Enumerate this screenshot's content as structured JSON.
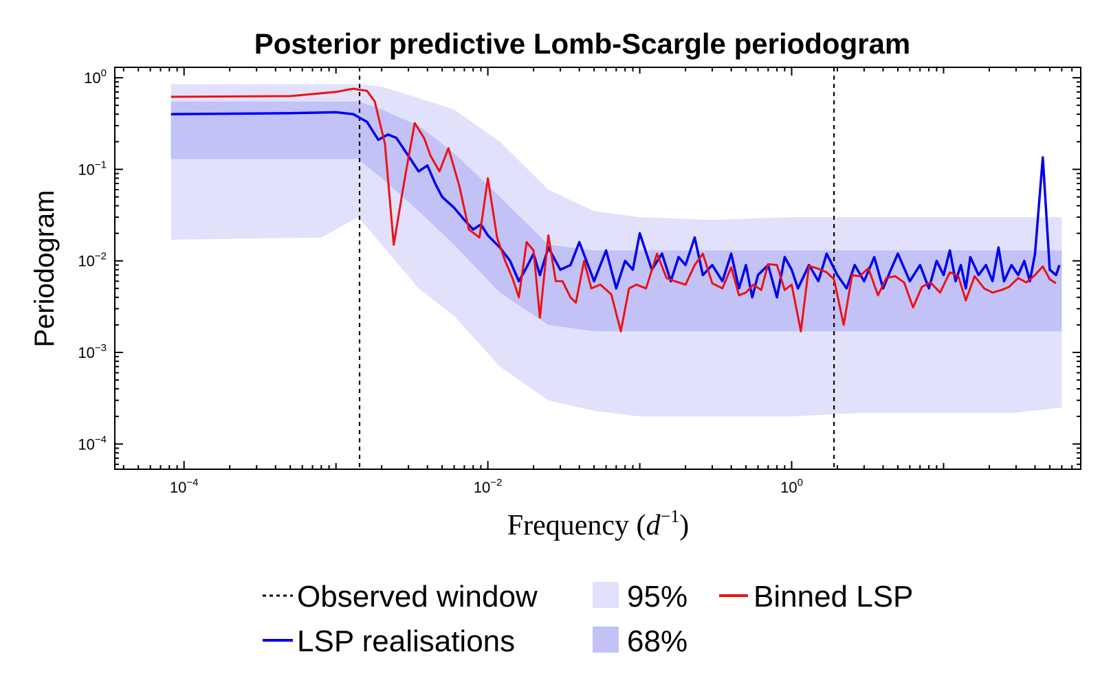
{
  "chart_data": {
    "type": "line",
    "title": "Posterior predictive Lomb-Scargle periodogram",
    "xlabel": "Frequency (d^-1)",
    "xlabel_parts": {
      "main": "Frequency (",
      "var": "d",
      "exp": "−1",
      "close": ")"
    },
    "ylabel": "Periodogram",
    "x_scale": "log",
    "y_scale": "log",
    "xlim": [
      3.5e-05,
      80
    ],
    "ylim": [
      5.3e-05,
      1.3
    ],
    "x_ticks": [
      {
        "base": "10",
        "exp": "−4",
        "value": 0.0001
      },
      {
        "base": "10",
        "exp": "−2",
        "value": 0.01
      },
      {
        "base": "10",
        "exp": "0",
        "value": 1
      }
    ],
    "y_ticks": [
      {
        "base": "10",
        "exp": "0",
        "value": 1
      },
      {
        "base": "10",
        "exp": "−1",
        "value": 0.1
      },
      {
        "base": "10",
        "exp": "−2",
        "value": 0.01
      },
      {
        "base": "10",
        "exp": "−3",
        "value": 0.001
      },
      {
        "base": "10",
        "exp": "−4",
        "value": 0.0001
      }
    ],
    "observed_window": [
      0.00143,
      1.9
    ],
    "band_95": {
      "x": [
        8.2e-05,
        0.0008,
        0.0014,
        0.002,
        0.0035,
        0.006,
        0.012,
        0.025,
        0.05,
        0.1,
        0.3,
        1,
        3,
        8,
        30,
        60
      ],
      "upper": [
        0.85,
        0.85,
        0.85,
        0.8,
        0.6,
        0.45,
        0.2,
        0.06,
        0.035,
        0.03,
        0.028,
        0.03,
        0.03,
        0.03,
        0.03,
        0.03
      ],
      "lower": [
        0.017,
        0.018,
        0.03,
        0.015,
        0.005,
        0.0025,
        0.0007,
        0.0003,
        0.00023,
        0.0002,
        0.0002,
        0.0002,
        0.00022,
        0.00022,
        0.00022,
        0.00025
      ]
    },
    "band_68": {
      "x": [
        8.2e-05,
        0.0008,
        0.0014,
        0.002,
        0.0035,
        0.006,
        0.012,
        0.025,
        0.05,
        0.1,
        0.3,
        1,
        3,
        8,
        30,
        60
      ],
      "upper": [
        0.55,
        0.55,
        0.55,
        0.45,
        0.3,
        0.15,
        0.05,
        0.015,
        0.013,
        0.013,
        0.013,
        0.013,
        0.013,
        0.013,
        0.013,
        0.013
      ],
      "lower": [
        0.13,
        0.13,
        0.13,
        0.08,
        0.035,
        0.015,
        0.0045,
        0.002,
        0.0017,
        0.0017,
        0.0017,
        0.0017,
        0.0017,
        0.0017,
        0.0017,
        0.0017
      ]
    },
    "series": [
      {
        "name": "LSP realisations",
        "color": "#0000ee",
        "x": [
          8.2e-05,
          0.0005,
          0.001,
          0.0013,
          0.0016,
          0.0019,
          0.0022,
          0.0025,
          0.003,
          0.0035,
          0.004,
          0.0045,
          0.005,
          0.006,
          0.007,
          0.008,
          0.009,
          0.01,
          0.012,
          0.014,
          0.016,
          0.018,
          0.02,
          0.022,
          0.025,
          0.03,
          0.035,
          0.04,
          0.05,
          0.06,
          0.07,
          0.08,
          0.09,
          0.1,
          0.12,
          0.14,
          0.16,
          0.18,
          0.2,
          0.23,
          0.26,
          0.3,
          0.35,
          0.4,
          0.45,
          0.5,
          0.55,
          0.6,
          0.7,
          0.8,
          0.9,
          1.0,
          1.1,
          1.3,
          1.5,
          1.7,
          2.0,
          2.3,
          2.6,
          3.0,
          3.5,
          4.0,
          4.5,
          5.0,
          6.0,
          7.0,
          8.0,
          9.0,
          10.0,
          11.0,
          12.0,
          13.0,
          14.0,
          15.0,
          17.0,
          19.0,
          21.0,
          23.0,
          25.0,
          28.0,
          31.0,
          34.0,
          37.0,
          40.0,
          45.0,
          50.0,
          55.0,
          58.0
        ],
        "y": [
          0.4,
          0.41,
          0.42,
          0.4,
          0.33,
          0.21,
          0.24,
          0.22,
          0.14,
          0.095,
          0.11,
          0.07,
          0.05,
          0.038,
          0.028,
          0.022,
          0.025,
          0.019,
          0.014,
          0.01,
          0.006,
          0.0085,
          0.012,
          0.007,
          0.014,
          0.008,
          0.009,
          0.016,
          0.006,
          0.013,
          0.005,
          0.01,
          0.008,
          0.02,
          0.008,
          0.012,
          0.006,
          0.011,
          0.009,
          0.018,
          0.007,
          0.009,
          0.006,
          0.012,
          0.005,
          0.009,
          0.004,
          0.007,
          0.009,
          0.004,
          0.011,
          0.008,
          0.005,
          0.009,
          0.006,
          0.012,
          0.007,
          0.005,
          0.009,
          0.006,
          0.011,
          0.005,
          0.008,
          0.012,
          0.006,
          0.009,
          0.005,
          0.01,
          0.007,
          0.013,
          0.006,
          0.009,
          0.005,
          0.011,
          0.007,
          0.009,
          0.006,
          0.014,
          0.006,
          0.009,
          0.007,
          0.01,
          0.006,
          0.012,
          0.135,
          0.008,
          0.007,
          0.009
        ]
      },
      {
        "name": "Binned LSP",
        "color": "#ee1111",
        "x": [
          8.2e-05,
          0.0005,
          0.001,
          0.0013,
          0.0016,
          0.0018,
          0.0021,
          0.0024,
          0.0028,
          0.0033,
          0.0038,
          0.0042,
          0.0048,
          0.0055,
          0.0065,
          0.0075,
          0.0088,
          0.01,
          0.0115,
          0.013,
          0.0145,
          0.016,
          0.018,
          0.02,
          0.022,
          0.025,
          0.028,
          0.031,
          0.035,
          0.038,
          0.043,
          0.048,
          0.055,
          0.065,
          0.075,
          0.085,
          0.095,
          0.11,
          0.13,
          0.15,
          0.17,
          0.2,
          0.23,
          0.26,
          0.3,
          0.35,
          0.4,
          0.45,
          0.5,
          0.56,
          0.63,
          0.7,
          0.8,
          0.9,
          1.0,
          1.15,
          1.3,
          1.5,
          1.7,
          1.9,
          2.2,
          2.5,
          2.8,
          3.2,
          3.7,
          4.2,
          4.8,
          5.5,
          6.3,
          7.2,
          8.2,
          9.5,
          11.0,
          12.5,
          14.0,
          16.0,
          18.5,
          21.0,
          24.0,
          27.0,
          31.0,
          35.0,
          40.0,
          45.0,
          50.0,
          55.0
        ],
        "y": [
          0.62,
          0.63,
          0.7,
          0.76,
          0.72,
          0.55,
          0.19,
          0.015,
          0.07,
          0.32,
          0.22,
          0.14,
          0.095,
          0.17,
          0.065,
          0.022,
          0.018,
          0.08,
          0.018,
          0.01,
          0.0065,
          0.004,
          0.016,
          0.013,
          0.0024,
          0.019,
          0.006,
          0.006,
          0.004,
          0.0035,
          0.01,
          0.005,
          0.0055,
          0.0043,
          0.0017,
          0.005,
          0.0055,
          0.005,
          0.012,
          0.0065,
          0.006,
          0.0055,
          0.009,
          0.012,
          0.0057,
          0.005,
          0.0085,
          0.0042,
          0.0045,
          0.0055,
          0.0048,
          0.0092,
          0.009,
          0.0048,
          0.0055,
          0.0017,
          0.0088,
          0.0082,
          0.0075,
          0.0063,
          0.002,
          0.007,
          0.0068,
          0.0083,
          0.0042,
          0.0065,
          0.0068,
          0.0058,
          0.0031,
          0.0052,
          0.0058,
          0.0045,
          0.0075,
          0.0068,
          0.0037,
          0.0068,
          0.005,
          0.0045,
          0.0048,
          0.0052,
          0.0065,
          0.0058,
          0.007,
          0.0087,
          0.0063,
          0.0057
        ]
      }
    ],
    "legend": {
      "placement": "bottom",
      "items": [
        {
          "label": "Observed window",
          "kind": "dashed-line",
          "color": "#000000"
        },
        {
          "label": "95%",
          "kind": "patch",
          "color": "#e1e1fc"
        },
        {
          "label": "Binned LSP",
          "kind": "line",
          "color": "#ee1111"
        },
        {
          "label": "LSP realisations",
          "kind": "line",
          "color": "#0000ee"
        },
        {
          "label": "68%",
          "kind": "patch",
          "color": "#c2c2f7"
        }
      ]
    },
    "colors": {
      "band95": "#e1e1fc",
      "band68": "#c2c2f7",
      "realisation": "#0000ee",
      "binned": "#ee1111",
      "window": "#000000"
    }
  }
}
